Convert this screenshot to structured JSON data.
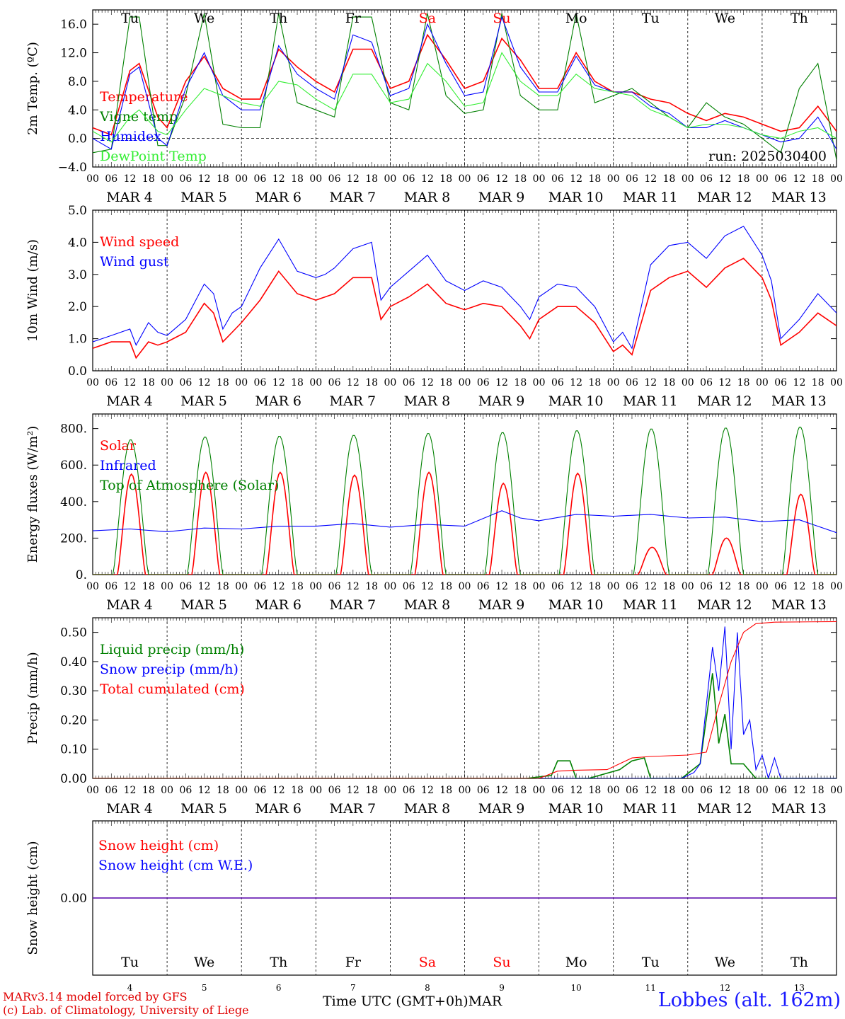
{
  "chart_data": [
    {
      "type": "line",
      "panel_id": "temperature",
      "ylabel": "2m Temp. (ºC)",
      "ylim": [
        -4,
        18
      ],
      "yticks": [
        "−4.0",
        "0.0",
        "4.0",
        "8.0",
        "12.0",
        "16.0"
      ],
      "ytick_values": [
        -4,
        0,
        4,
        8,
        12,
        16
      ],
      "zero_line": true,
      "annotation": "run: 2025030400",
      "series": [
        {
          "name": "Temperature",
          "color": "#ff0000",
          "x": [
            0,
            6,
            12,
            15,
            21,
            24,
            30,
            36,
            42,
            48,
            54,
            60,
            66,
            72,
            78,
            84,
            90,
            96,
            102,
            108,
            114,
            120,
            126,
            132,
            138,
            144,
            150,
            156,
            162,
            168,
            174,
            180,
            186,
            192,
            198,
            204,
            210,
            216,
            222,
            228,
            234,
            240
          ],
          "y": [
            1.5,
            0.5,
            9.5,
            10.5,
            3,
            1.5,
            8,
            11.5,
            7,
            5.5,
            5.5,
            12.5,
            10,
            8,
            6.5,
            12.5,
            12.5,
            7,
            8,
            14.5,
            11,
            7,
            8,
            14,
            11,
            7,
            7,
            12,
            8,
            6.5,
            6.5,
            5.5,
            5,
            3.5,
            2.5,
            3.5,
            3,
            2,
            1,
            1.5,
            4.5,
            1
          ]
        },
        {
          "name": "Vigne temp",
          "color": "#008000",
          "x": [
            0,
            6,
            12,
            15,
            21,
            24,
            30,
            36,
            42,
            48,
            54,
            60,
            66,
            72,
            78,
            84,
            90,
            96,
            102,
            108,
            114,
            120,
            126,
            132,
            138,
            144,
            150,
            156,
            162,
            168,
            174,
            180,
            186,
            192,
            198,
            204,
            210,
            216,
            222,
            228,
            234,
            240
          ],
          "y": [
            -2,
            -1.5,
            17,
            17,
            -1,
            -1,
            6,
            17.5,
            2,
            1.5,
            1.5,
            17.5,
            5,
            4,
            3,
            17,
            17,
            5,
            4,
            17.5,
            6,
            3.5,
            4,
            17.5,
            6,
            4,
            4,
            17.5,
            5,
            6,
            7,
            5,
            3,
            1.5,
            5,
            3,
            2,
            0,
            -2,
            7,
            10.5,
            -3
          ]
        },
        {
          "name": "Humidex",
          "color": "#0000ff",
          "x": [
            0,
            6,
            12,
            15,
            21,
            24,
            30,
            36,
            42,
            48,
            54,
            60,
            66,
            72,
            78,
            84,
            90,
            96,
            102,
            108,
            114,
            120,
            126,
            132,
            138,
            144,
            150,
            156,
            162,
            168,
            174,
            180,
            186,
            192,
            198,
            204,
            210,
            216,
            222,
            228,
            234,
            240
          ],
          "y": [
            0,
            -1.5,
            9,
            10,
            0,
            -1,
            7,
            12,
            6,
            4,
            4,
            13,
            9,
            7,
            5.5,
            14.5,
            13.5,
            6,
            7,
            16,
            10.5,
            6,
            6.5,
            17,
            10,
            6.5,
            6.5,
            11.5,
            7.5,
            6.5,
            6.5,
            4.5,
            3.5,
            1.5,
            1.5,
            2.5,
            1.5,
            0.5,
            -0.5,
            0,
            3,
            -1.5
          ]
        },
        {
          "name": "DewPoint Temp",
          "color": "#33ee33",
          "x": [
            0,
            6,
            12,
            15,
            21,
            24,
            30,
            36,
            42,
            48,
            54,
            60,
            66,
            72,
            78,
            84,
            90,
            96,
            102,
            108,
            114,
            120,
            126,
            132,
            138,
            144,
            150,
            156,
            162,
            168,
            174,
            180,
            186,
            192,
            198,
            204,
            210,
            216,
            222,
            228,
            234,
            240
          ],
          "y": [
            1,
            -0.5,
            3,
            4,
            1,
            0.5,
            4,
            7,
            6,
            5,
            4.5,
            8,
            7.5,
            5.5,
            4,
            9,
            9,
            5,
            5.5,
            10.5,
            8,
            4.5,
            5,
            12,
            8,
            6,
            6,
            9,
            7,
            6.5,
            6,
            4,
            3,
            1.5,
            2,
            2,
            1.5,
            0.5,
            0,
            1,
            1.5,
            0
          ]
        }
      ]
    },
    {
      "type": "line",
      "panel_id": "wind",
      "ylabel": "10m Wind (m/s)",
      "ylim": [
        0,
        5
      ],
      "yticks": [
        "0.0",
        "1.0",
        "2.0",
        "3.0",
        "4.0",
        "5.0"
      ],
      "ytick_values": [
        0,
        1,
        2,
        3,
        4,
        5
      ],
      "series": [
        {
          "name": "Wind speed",
          "color": "#ff0000",
          "x": [
            0,
            6,
            12,
            14,
            18,
            21,
            24,
            30,
            36,
            39,
            42,
            45,
            48,
            54,
            60,
            66,
            72,
            75,
            78,
            84,
            90,
            93,
            96,
            102,
            108,
            114,
            120,
            126,
            132,
            138,
            141,
            144,
            150,
            156,
            162,
            168,
            171,
            174,
            180,
            186,
            192,
            198,
            204,
            210,
            216,
            219,
            222,
            228,
            234,
            240
          ],
          "y": [
            0.7,
            0.9,
            0.9,
            0.4,
            0.9,
            0.8,
            0.9,
            1.2,
            2.1,
            1.8,
            0.9,
            1.2,
            1.5,
            2.2,
            3.1,
            2.4,
            2.2,
            2.3,
            2.4,
            2.9,
            2.9,
            1.6,
            2.0,
            2.3,
            2.7,
            2.1,
            1.9,
            2.1,
            2.0,
            1.4,
            1.0,
            1.6,
            2.0,
            2.0,
            1.5,
            0.6,
            0.8,
            0.5,
            2.5,
            2.9,
            3.1,
            2.6,
            3.2,
            3.5,
            2.9,
            2.2,
            0.8,
            1.2,
            1.8,
            1.4
          ]
        },
        {
          "name": "Wind gust",
          "color": "#0000ff",
          "x": [
            0,
            6,
            12,
            14,
            18,
            21,
            24,
            30,
            36,
            39,
            42,
            45,
            48,
            54,
            60,
            66,
            72,
            75,
            78,
            84,
            90,
            93,
            96,
            102,
            108,
            114,
            120,
            126,
            132,
            138,
            141,
            144,
            150,
            156,
            162,
            168,
            171,
            174,
            180,
            186,
            192,
            198,
            204,
            210,
            216,
            219,
            222,
            228,
            234,
            240
          ],
          "y": [
            0.9,
            1.1,
            1.3,
            0.8,
            1.5,
            1.2,
            1.1,
            1.6,
            2.7,
            2.4,
            1.3,
            1.8,
            2.0,
            3.2,
            4.1,
            3.1,
            2.9,
            3.0,
            3.2,
            3.8,
            4.0,
            2.2,
            2.6,
            3.1,
            3.6,
            2.8,
            2.5,
            2.8,
            2.6,
            2.0,
            1.6,
            2.3,
            2.7,
            2.6,
            2.0,
            0.9,
            1.2,
            0.7,
            3.3,
            3.9,
            4.0,
            3.5,
            4.2,
            4.5,
            3.6,
            2.8,
            1.0,
            1.6,
            2.4,
            1.8
          ]
        }
      ]
    },
    {
      "type": "line",
      "panel_id": "energy",
      "ylabel": "Energy fluxes (W/m²)",
      "ylim": [
        0,
        880
      ],
      "yticks": [
        "0.",
        "200.",
        "400.",
        "600.",
        "800."
      ],
      "ytick_values": [
        0,
        200,
        400,
        600,
        800
      ],
      "series": [
        {
          "name": "Solar",
          "color": "#ff0000",
          "day_peaks": [
            550,
            560,
            560,
            545,
            560,
            500,
            555,
            150,
            200,
            440
          ]
        },
        {
          "name": "Infrared",
          "color": "#0000ff",
          "x": [
            0,
            12,
            24,
            36,
            48,
            60,
            72,
            84,
            96,
            108,
            120,
            132,
            138,
            144,
            156,
            168,
            180,
            192,
            204,
            216,
            228,
            240
          ],
          "y": [
            240,
            250,
            235,
            255,
            250,
            265,
            265,
            280,
            260,
            275,
            265,
            350,
            310,
            295,
            330,
            320,
            330,
            310,
            315,
            290,
            300,
            230
          ]
        },
        {
          "name": "Top of Atmosphere (Solar)",
          "color": "#008000",
          "day_peaks": [
            740,
            755,
            760,
            765,
            775,
            780,
            790,
            800,
            805,
            810
          ]
        }
      ]
    },
    {
      "type": "line",
      "panel_id": "precip",
      "ylabel": "Precip (mm/h)",
      "ylim": [
        0,
        0.55
      ],
      "yticks": [
        "0.00",
        "0.10",
        "0.20",
        "0.30",
        "0.40",
        "0.50"
      ],
      "ytick_values": [
        0,
        0.1,
        0.2,
        0.3,
        0.4,
        0.5
      ],
      "series": [
        {
          "name": "Liquid precip (mm/h)",
          "color": "#008000",
          "x": [
            0,
            140,
            144,
            148,
            150,
            154,
            156,
            160,
            170,
            174,
            178,
            180,
            190,
            196,
            200,
            202,
            204,
            206,
            210,
            214,
            240
          ],
          "y": [
            0,
            0,
            0.005,
            0.01,
            0.06,
            0.06,
            0.0,
            0.0,
            0.03,
            0.06,
            0.07,
            0.0,
            0.0,
            0.05,
            0.36,
            0.12,
            0.22,
            0.05,
            0.05,
            0.0,
            0
          ]
        },
        {
          "name": "Snow precip (mm/h)",
          "color": "#0000ff",
          "x": [
            0,
            190,
            194,
            196,
            200,
            202,
            204,
            206,
            208,
            210,
            212,
            214,
            216,
            218,
            220,
            222,
            240
          ],
          "y": [
            0,
            0,
            0.02,
            0.05,
            0.45,
            0.3,
            0.52,
            0.1,
            0.5,
            0.15,
            0.2,
            0.03,
            0.08,
            0.0,
            0.07,
            0.0,
            0
          ]
        },
        {
          "name": "Total cumulated (cm)",
          "color": "#ff0000",
          "x": [
            0,
            144,
            150,
            156,
            166,
            174,
            180,
            192,
            198,
            202,
            206,
            210,
            214,
            220,
            240
          ],
          "y": [
            0,
            0,
            0.025,
            0.028,
            0.03,
            0.07,
            0.075,
            0.08,
            0.09,
            0.25,
            0.4,
            0.5,
            0.53,
            0.535,
            0.537
          ]
        }
      ]
    },
    {
      "type": "line",
      "panel_id": "snow",
      "ylabel": "Snow height (cm)",
      "ylim": [
        -1,
        1
      ],
      "yticks": [
        "0.00"
      ],
      "ytick_values": [
        0
      ],
      "series": [
        {
          "name": "Snow height (cm)",
          "color": "#ff0000",
          "x": [
            0,
            240
          ],
          "y": [
            0,
            0
          ]
        },
        {
          "name": "Snow height (cm W.E.)",
          "color": "#0000ff",
          "x": [
            0,
            240
          ],
          "y": [
            0,
            0
          ]
        }
      ]
    }
  ],
  "days": {
    "names": [
      "Tu",
      "We",
      "Th",
      "Fr",
      "Sa",
      "Su",
      "Mo",
      "Tu",
      "We",
      "Th"
    ],
    "dates": [
      "MAR  4",
      "MAR  5",
      "MAR  6",
      "MAR  7",
      "MAR  8",
      "MAR  9",
      "MAR 10",
      "MAR 11",
      "MAR 12",
      "MAR 13"
    ],
    "numbers": [
      "4",
      "5",
      "6",
      "7",
      "8",
      "9",
      "10",
      "11",
      "12",
      "13"
    ],
    "hour_labels": [
      "00",
      "06",
      "12",
      "18"
    ],
    "final_hour_label": "00",
    "weekend_color": "#ff0000",
    "weekday_color": "#000000",
    "weekend_index": [
      4,
      5
    ]
  },
  "footer": {
    "model_line": "MARv3.14 model forced by GFS",
    "lab_line": "(c) Lab. of Climatology, University of Liege",
    "time_axis_label": "Time UTC (GMT+0h)",
    "month": "MAR",
    "station": "Lobbes (alt. 162m)"
  }
}
